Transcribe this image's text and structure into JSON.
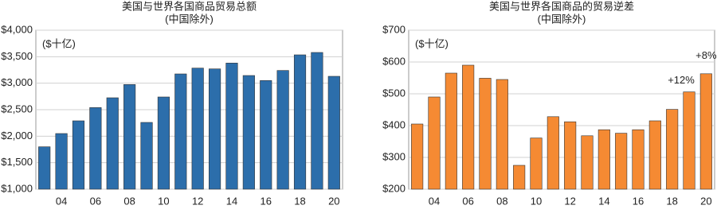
{
  "chart_data": [
    {
      "type": "bar",
      "title": "美国与世界各国商品贸易总额",
      "subtitle": "(中国除外)",
      "unit_label": "($十亿)",
      "categories": [
        null,
        "04",
        null,
        "06",
        null,
        "08",
        null,
        "10",
        null,
        "12",
        null,
        "14",
        null,
        "16",
        null,
        "18",
        null,
        "20"
      ],
      "values": [
        1800,
        2050,
        2290,
        2540,
        2725,
        2975,
        2260,
        2740,
        3175,
        3285,
        3270,
        3380,
        3145,
        3050,
        3240,
        3535,
        3580,
        3130
      ],
      "color": "#2c6eab",
      "ylim": [
        1000,
        4000
      ],
      "yticks": [
        {
          "value": 1000,
          "label": "$1,000"
        },
        {
          "value": 1500,
          "label": "$1,500"
        },
        {
          "value": 2000,
          "label": "$2,000"
        },
        {
          "value": 2500,
          "label": "$2,500"
        },
        {
          "value": 3000,
          "label": "$3,000"
        },
        {
          "value": 3500,
          "label": "$3,500"
        },
        {
          "value": 4000,
          "label": "$4,000"
        }
      ],
      "grid": true
    },
    {
      "type": "bar",
      "title": "美国与世界各国商品的贸易逆差",
      "subtitle": "(中国除外)",
      "unit_label": "($十亿)",
      "categories": [
        null,
        "04",
        null,
        "06",
        null,
        "08",
        null,
        "10",
        null,
        "12",
        null,
        "14",
        null,
        "16",
        null,
        "18",
        null,
        "20"
      ],
      "values": [
        405,
        490,
        565,
        590,
        549,
        545,
        275,
        361,
        428,
        412,
        368,
        387,
        376,
        387,
        415,
        451,
        506,
        563
      ],
      "color": "#f58a33",
      "ylim": [
        200,
        700
      ],
      "yticks": [
        {
          "value": 200,
          "label": "$200"
        },
        {
          "value": 300,
          "label": "$300"
        },
        {
          "value": 400,
          "label": "$400"
        },
        {
          "value": 500,
          "label": "$500"
        },
        {
          "value": 600,
          "label": "$600"
        },
        {
          "value": 700,
          "label": "$700"
        }
      ],
      "grid": true,
      "annotations": [
        "+12%",
        "+8%"
      ]
    }
  ]
}
